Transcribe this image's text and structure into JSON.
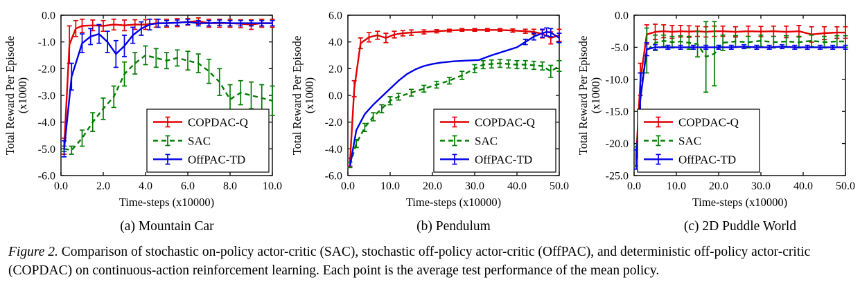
{
  "figure": {
    "caption_label": "Figure 2.",
    "caption_text": "Comparison of stochastic on-policy actor-critic (SAC), stochastic off-policy actor-critic (OffPAC), and deterministic off-policy actor-critic (COPDAC) on continuous-action reinforcement learning. Each point is the average test performance of the mean policy."
  },
  "colors": {
    "copdac_q": "#e10000",
    "sac": "#007d00",
    "offpac_td": "#0000e6",
    "axis": "#000000"
  },
  "chart_data": [
    {
      "type": "line",
      "title": "(a) Mountain Car",
      "xlabel": "Time-steps (x10000)",
      "ylabel": "Total Reward Per Episode",
      "ylabel2": "(x1000)",
      "xlim": [
        0,
        10
      ],
      "ylim": [
        -6,
        0
      ],
      "xticks": [
        0.0,
        2.0,
        4.0,
        6.0,
        8.0,
        10.0
      ],
      "yticks": [
        0.0,
        -1.0,
        -2.0,
        -3.0,
        -4.0,
        -5.0,
        -6.0
      ],
      "grid": false,
      "legend_pos": "bottom-right",
      "series": [
        {
          "name": "COPDAC-Q",
          "color": "#e10000",
          "dash": null,
          "x": [
            0.15,
            0.4,
            0.7,
            1.0,
            1.5,
            2.0,
            2.5,
            3.0,
            3.5,
            4.0,
            4.5,
            5.0,
            5.5,
            6.0,
            6.5,
            7.0,
            7.5,
            8.0,
            8.5,
            9.0,
            9.5,
            10.0
          ],
          "y": [
            -4.9,
            -1.1,
            -0.5,
            -0.4,
            -0.38,
            -0.4,
            -0.35,
            -0.38,
            -0.35,
            -0.35,
            -0.3,
            -0.3,
            -0.28,
            -0.25,
            -0.22,
            -0.3,
            -0.3,
            -0.3,
            -0.32,
            -0.35,
            -0.3,
            -0.3
          ],
          "yerr": [
            0.3,
            0.7,
            0.3,
            0.25,
            0.2,
            0.2,
            0.2,
            0.2,
            0.18,
            0.18,
            0.15,
            0.15,
            0.15,
            0.12,
            0.12,
            0.15,
            0.15,
            0.15,
            0.15,
            0.18,
            0.15,
            0.15
          ]
        },
        {
          "name": "SAC",
          "color": "#007d00",
          "dash": "7,5",
          "x": [
            0.15,
            0.5,
            1.0,
            1.5,
            2.0,
            2.5,
            3.0,
            3.5,
            4.0,
            4.5,
            5.0,
            5.5,
            6.0,
            6.5,
            7.0,
            7.5,
            8.0,
            8.5,
            9.0,
            9.5,
            10.0
          ],
          "y": [
            -5.0,
            -5.05,
            -4.6,
            -4.0,
            -3.5,
            -3.05,
            -2.2,
            -1.8,
            -1.5,
            -1.6,
            -1.7,
            -1.6,
            -1.7,
            -1.8,
            -2.1,
            -2.5,
            -3.15,
            -2.9,
            -3.0,
            -3.1,
            -3.2
          ],
          "yerr": [
            0.1,
            0.15,
            0.3,
            0.35,
            0.4,
            0.4,
            0.45,
            0.4,
            0.35,
            0.35,
            0.3,
            0.3,
            0.35,
            0.35,
            0.45,
            0.5,
            0.55,
            0.45,
            0.5,
            0.5,
            0.55
          ]
        },
        {
          "name": "OffPAC-TD",
          "color": "#0000e6",
          "dash": null,
          "x": [
            0.15,
            0.5,
            1.0,
            1.4,
            1.8,
            2.2,
            2.6,
            3.0,
            3.4,
            3.8,
            4.2,
            4.6,
            5.0,
            5.5,
            6.0,
            6.5,
            7.0,
            7.5,
            8.0,
            8.5,
            9.0,
            9.5,
            10.0
          ],
          "y": [
            -5.0,
            -2.3,
            -1.05,
            -0.8,
            -0.7,
            -1.0,
            -1.45,
            -1.15,
            -0.75,
            -0.5,
            -0.35,
            -0.3,
            -0.3,
            -0.28,
            -0.25,
            -0.3,
            -0.3,
            -0.28,
            -0.3,
            -0.3,
            -0.3,
            -0.3,
            -0.3
          ],
          "yerr": [
            0.3,
            0.5,
            0.35,
            0.3,
            0.35,
            0.4,
            0.5,
            0.4,
            0.3,
            0.25,
            0.2,
            0.15,
            0.1,
            0.1,
            0.1,
            0.1,
            0.1,
            0.1,
            0.1,
            0.1,
            0.1,
            0.1,
            0.1
          ]
        }
      ]
    },
    {
      "type": "line",
      "title": "(b) Pendulum",
      "xlabel": "Time-steps (x10000)",
      "ylabel": "Total Reward Per Episode",
      "ylabel2": "(x1000)",
      "xlim": [
        0,
        50
      ],
      "ylim": [
        -6,
        6
      ],
      "xticks": [
        0.0,
        10.0,
        20.0,
        30.0,
        40.0,
        50.0
      ],
      "yticks": [
        6.0,
        4.0,
        2.0,
        0.0,
        -2.0,
        -4.0,
        -6.0
      ],
      "grid": false,
      "legend_pos": "bottom-right",
      "series": [
        {
          "name": "COPDAC-Q",
          "color": "#e10000",
          "dash": null,
          "x": [
            0.5,
            1.5,
            3,
            5,
            7,
            9,
            11,
            13,
            15,
            18,
            21,
            24,
            27,
            30,
            33,
            36,
            39,
            42,
            44,
            46,
            48,
            50
          ],
          "y": [
            -5.0,
            0.5,
            3.9,
            4.35,
            4.5,
            4.3,
            4.55,
            4.65,
            4.7,
            4.75,
            4.8,
            4.85,
            4.9,
            4.9,
            4.9,
            4.9,
            4.85,
            4.8,
            4.75,
            4.6,
            4.3,
            4.5
          ],
          "yerr": [
            0.3,
            0.6,
            0.4,
            0.35,
            0.3,
            0.35,
            0.25,
            0.2,
            0.2,
            0.15,
            0.12,
            0.1,
            0.1,
            0.1,
            0.1,
            0.1,
            0.12,
            0.15,
            0.2,
            0.3,
            0.45,
            0.45
          ]
        },
        {
          "name": "SAC",
          "color": "#007d00",
          "dash": "7,5",
          "x": [
            0.5,
            2,
            4,
            6,
            8,
            10,
            12,
            15,
            18,
            21,
            24,
            27,
            30,
            32,
            34,
            36,
            38,
            40,
            42,
            44,
            46,
            48,
            50
          ],
          "y": [
            -5.2,
            -3.6,
            -2.4,
            -1.6,
            -1.0,
            -0.4,
            -0.1,
            0.2,
            0.5,
            0.8,
            1.1,
            1.5,
            2.0,
            2.3,
            2.35,
            2.4,
            2.35,
            2.3,
            2.3,
            2.25,
            2.2,
            1.8,
            2.2
          ],
          "yerr": [
            0.2,
            0.3,
            0.3,
            0.3,
            0.3,
            0.3,
            0.25,
            0.25,
            0.25,
            0.25,
            0.25,
            0.3,
            0.3,
            0.3,
            0.3,
            0.3,
            0.3,
            0.3,
            0.3,
            0.3,
            0.3,
            0.45,
            0.4
          ]
        },
        {
          "name": "OffPAC-TD",
          "color": "#0000e6",
          "dash": null,
          "x": [
            0.5,
            2,
            4,
            6,
            8,
            10,
            12,
            14,
            16,
            18,
            20,
            22,
            25,
            28,
            31,
            34,
            37,
            40,
            42,
            44,
            46,
            47,
            48,
            50
          ],
          "y": [
            -5.3,
            -2.6,
            -1.4,
            -0.7,
            -0.1,
            0.5,
            1.1,
            1.6,
            1.95,
            2.2,
            2.35,
            2.45,
            2.55,
            2.6,
            2.65,
            3.0,
            3.3,
            3.6,
            4.0,
            4.4,
            4.65,
            4.75,
            4.7,
            4.3
          ],
          "yerr": [
            0,
            0,
            0,
            0,
            0,
            0,
            0,
            0,
            0,
            0,
            0,
            0,
            0,
            0,
            0,
            0,
            0,
            0,
            0.2,
            0.25,
            0.3,
            0.3,
            0.3,
            0.35
          ]
        }
      ]
    },
    {
      "type": "line",
      "title": "(c) 2D Puddle World",
      "xlabel": "Time-steps (x10000)",
      "ylabel": "Total Reward Per Episode",
      "ylabel2": "(x1000)",
      "xlim": [
        0,
        50
      ],
      "ylim": [
        -25,
        0
      ],
      "xticks": [
        0.0,
        10.0,
        20.0,
        30.0,
        40.0,
        50.0
      ],
      "yticks": [
        0.0,
        -5.0,
        -10.0,
        -15.0,
        -20.0,
        -25.0
      ],
      "grid": false,
      "legend_pos": "bottom-left",
      "series": [
        {
          "name": "COPDAC-Q",
          "color": "#e10000",
          "dash": null,
          "x": [
            0.5,
            1.5,
            3,
            5,
            7,
            9,
            11,
            13,
            15,
            17,
            19,
            21,
            24,
            27,
            30,
            33,
            36,
            39,
            42,
            45,
            48,
            50
          ],
          "y": [
            -22,
            -10,
            -3.0,
            -2.6,
            -2.5,
            -2.6,
            -2.5,
            -2.55,
            -2.5,
            -2.6,
            -2.5,
            -2.5,
            -2.6,
            -2.5,
            -2.55,
            -2.5,
            -2.6,
            -2.5,
            -3.0,
            -2.8,
            -2.7,
            -2.7
          ],
          "yerr": [
            1.5,
            2.5,
            1.5,
            1.2,
            1.0,
            1.0,
            0.9,
            0.9,
            0.8,
            0.8,
            0.8,
            0.8,
            0.8,
            0.8,
            0.8,
            0.8,
            0.9,
            0.9,
            1.2,
            1.0,
            0.9,
            0.9
          ]
        },
        {
          "name": "SAC",
          "color": "#007d00",
          "dash": "7,5",
          "x": [
            0.5,
            1.5,
            3,
            5,
            7,
            9,
            11,
            13,
            15,
            17,
            19,
            21,
            24,
            27,
            30,
            33,
            36,
            39,
            42,
            45,
            48,
            50
          ],
          "y": [
            -22,
            -12,
            -5.5,
            -4.3,
            -4.0,
            -4.2,
            -4.1,
            -4.3,
            -4.5,
            -6.5,
            -6.0,
            -4.3,
            -4.1,
            -4.2,
            -4.0,
            -4.2,
            -4.1,
            -4.2,
            -4.0,
            -4.2,
            -4.1,
            -4.1
          ],
          "yerr": [
            1.5,
            3.0,
            3.5,
            1.2,
            0.9,
            0.9,
            0.9,
            1.0,
            2.0,
            5.5,
            5.0,
            1.2,
            0.9,
            0.9,
            0.9,
            0.9,
            0.9,
            0.9,
            0.9,
            0.9,
            0.9,
            0.9
          ]
        },
        {
          "name": "OffPAC-TD",
          "color": "#0000e6",
          "dash": null,
          "x": [
            0.5,
            1.5,
            3,
            5,
            8,
            11,
            14,
            17,
            20,
            23,
            26,
            29,
            32,
            35,
            38,
            41,
            44,
            47,
            50
          ],
          "y": [
            -22.5,
            -13,
            -5.3,
            -5.0,
            -5.0,
            -5.0,
            -5.0,
            -5.0,
            -5.0,
            -5.0,
            -4.9,
            -5.0,
            -5.0,
            -4.9,
            -5.0,
            -5.0,
            -5.0,
            -5.0,
            -5.0
          ],
          "yerr": [
            1.5,
            4.0,
            1.0,
            0.4,
            0.3,
            0.3,
            0.3,
            0.3,
            0.3,
            0.3,
            0.3,
            0.3,
            0.3,
            0.3,
            0.3,
            0.3,
            0.3,
            0.3,
            0.3
          ]
        }
      ]
    }
  ]
}
